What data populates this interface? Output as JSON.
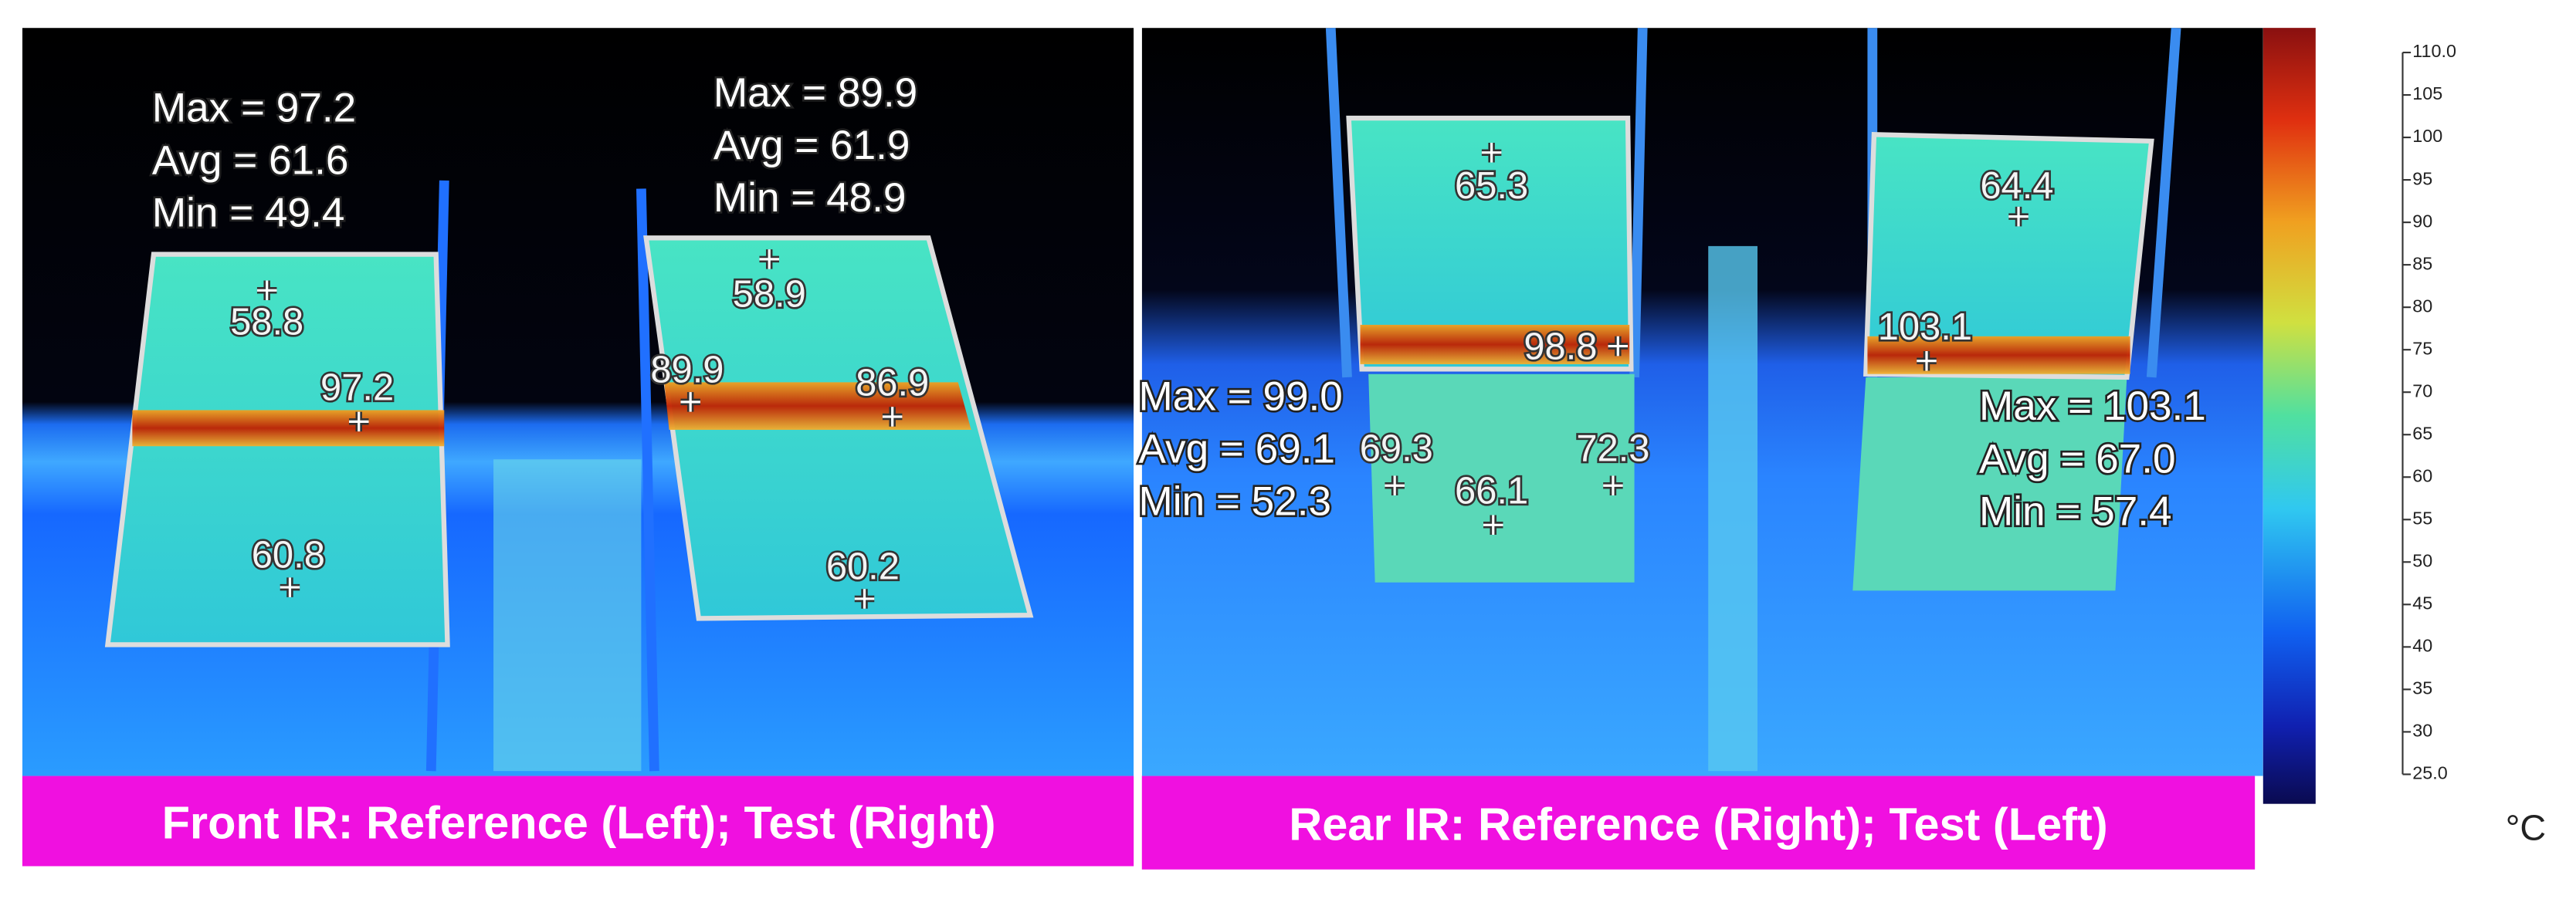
{
  "panels": [
    {
      "caption": "Front IR: Reference (Left); Test (Right)",
      "regions": [
        {
          "stats": [
            "Max = 97.2",
            "Avg = 61.6",
            "Min = 49.4"
          ]
        },
        {
          "stats": [
            "Max = 89.9",
            "Avg = 61.9",
            "Min = 48.9"
          ]
        }
      ],
      "points": [
        58.8,
        97.2,
        60.8,
        58.9,
        89.9,
        86.9,
        60.2
      ]
    },
    {
      "caption": "Rear IR: Reference (Right); Test (Left)",
      "regions": [
        {
          "stats": [
            "Max = 99.0",
            "Avg = 69.1",
            "Min = 52.3"
          ]
        },
        {
          "stats": [
            "Max = 103.1",
            "Avg = 67.0",
            "Min = 57.4"
          ]
        }
      ],
      "points": [
        65.3,
        98.8,
        103.1,
        64.4,
        69.3,
        66.1,
        72.3
      ]
    }
  ],
  "colorbar": {
    "range": [
      25,
      110
    ],
    "ticks": [
      {
        "value": 110,
        "label": "110.0"
      },
      105,
      100,
      95,
      90,
      85,
      80,
      75,
      70,
      65,
      60,
      55,
      50,
      45,
      40,
      35,
      30,
      {
        "value": 25,
        "label": "25.0"
      }
    ],
    "unit": "°C"
  }
}
